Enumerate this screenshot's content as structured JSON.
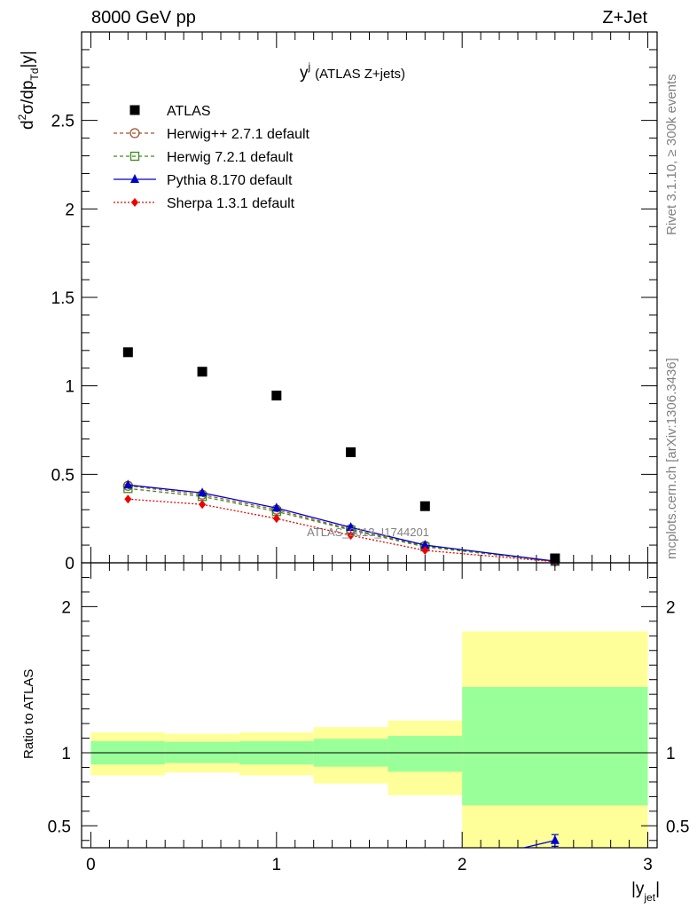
{
  "header": {
    "left": "8000 GeV pp",
    "right": "Z+Jet"
  },
  "side_labels": {
    "rivet": "Rivet 3.1.10, ≥ 300k events",
    "mcplots": "mcplots.cern.ch [arXiv:1306.3436]"
  },
  "chart_data": [
    {
      "type": "scatter",
      "title": "y",
      "title_superscript": "j",
      "title_suffix": "(ATLAS Z+jets)",
      "watermark": "ATLAS_2013_I1744201",
      "ylabel": "d²σ/dp_Td|y|",
      "ylim": [
        0,
        3.0
      ],
      "xlim": [
        -0.05,
        3.05
      ],
      "yticks": [
        "0.5",
        "1",
        "1.5",
        "2",
        "2.5"
      ],
      "legend_position": "top-left",
      "series": [
        {
          "name": "ATLAS",
          "color": "#000000",
          "marker": "square",
          "x": [
            0.2,
            0.6,
            1.0,
            1.4,
            1.8,
            2.5
          ],
          "y": [
            1.19,
            1.08,
            0.945,
            0.625,
            0.32,
            0.025
          ]
        },
        {
          "name": "Herwig++ 2.7.1 default",
          "color": "#a0522d",
          "marker": "open-circle",
          "dash": "4,3",
          "x": [
            0.2,
            0.6,
            1.0,
            1.4,
            1.8,
            2.5
          ],
          "y": [
            0.435,
            0.385,
            0.3,
            0.19,
            0.095,
            0.008
          ]
        },
        {
          "name": "Herwig 7.2.1 default",
          "color": "#3a8e1e",
          "marker": "open-square",
          "dash": "4,3",
          "x": [
            0.2,
            0.6,
            1.0,
            1.4,
            1.8,
            2.5
          ],
          "y": [
            0.42,
            0.375,
            0.29,
            0.185,
            0.09,
            0.008
          ]
        },
        {
          "name": "Pythia 8.170 default",
          "color": "#0000cc",
          "marker": "triangle",
          "x": [
            0.2,
            0.6,
            1.0,
            1.4,
            1.8,
            2.5
          ],
          "y": [
            0.44,
            0.395,
            0.31,
            0.2,
            0.1,
            0.009
          ]
        },
        {
          "name": "Sherpa 1.3.1 default",
          "color": "#ee0000",
          "marker": "diamond",
          "dash": "2,2",
          "x": [
            0.2,
            0.6,
            1.0,
            1.4,
            1.8,
            2.5
          ],
          "y": [
            0.36,
            0.33,
            0.25,
            0.155,
            0.07,
            0.006
          ]
        }
      ]
    },
    {
      "type": "scatter",
      "xlabel": "|y_jet|",
      "ylabel": "Ratio to ATLAS",
      "xlim": [
        -0.05,
        3.05
      ],
      "ylim": [
        0.35,
        2.3
      ],
      "xticks": [
        "0",
        "1",
        "2",
        "3"
      ],
      "yticks": [
        "0.5",
        "1",
        "2"
      ],
      "bands": [
        {
          "xlow": 0.0,
          "xhigh": 0.4,
          "stat_low": 0.92,
          "stat_high": 1.08,
          "total_low": 0.845,
          "total_high": 1.14
        },
        {
          "xlow": 0.4,
          "xhigh": 0.8,
          "stat_low": 0.93,
          "stat_high": 1.075,
          "total_low": 0.865,
          "total_high": 1.13
        },
        {
          "xlow": 0.8,
          "xhigh": 1.2,
          "stat_low": 0.92,
          "stat_high": 1.08,
          "total_low": 0.845,
          "total_high": 1.14
        },
        {
          "xlow": 1.2,
          "xhigh": 1.6,
          "stat_low": 0.905,
          "stat_high": 1.095,
          "total_low": 0.79,
          "total_high": 1.175
        },
        {
          "xlow": 1.6,
          "xhigh": 2.0,
          "stat_low": 0.87,
          "stat_high": 1.115,
          "total_low": 0.71,
          "total_high": 1.22
        },
        {
          "xlow": 2.0,
          "xhigh": 3.0,
          "stat_low": 0.64,
          "stat_high": 1.45,
          "total_low": 0.35,
          "total_high": 1.83
        }
      ],
      "stat_color": "#99ff99",
      "total_color": "#ffff99",
      "series": [
        {
          "name": "Pythia 8.170 default",
          "color": "#0000cc",
          "marker": "triangle",
          "x": [
            2.3,
            2.5
          ],
          "y": [
            0.34,
            0.4
          ],
          "err": [
            null,
            0.04
          ]
        }
      ]
    }
  ]
}
